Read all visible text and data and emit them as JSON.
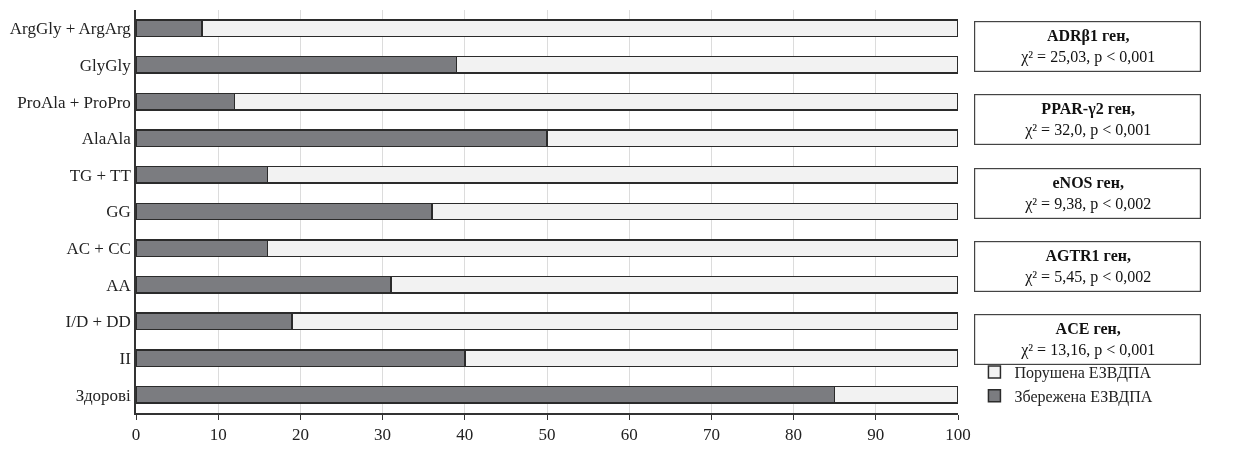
{
  "chart_data": {
    "type": "bar",
    "orientation": "horizontal",
    "stacked": true,
    "categories": [
      "ArgGly + ArgArg",
      "GlyGly",
      "ProAla + ProPro",
      "AlaAla",
      "TG + TT",
      "GG",
      "AC + CC",
      "AA",
      "I/D + DD",
      "II",
      "Здорові"
    ],
    "series": [
      {
        "name": "Збережена ЕЗВДПА",
        "color": "#7b7c80",
        "values": [
          8,
          39,
          12,
          50,
          16,
          36,
          16,
          31,
          19,
          40,
          85
        ]
      },
      {
        "name": "Порушена ЕЗВДПА",
        "color": "#f2f2f2",
        "values": [
          92,
          61,
          88,
          50,
          84,
          64,
          84,
          69,
          81,
          60,
          15
        ]
      }
    ],
    "xlim": [
      0,
      100
    ],
    "xticks": [
      0,
      10,
      20,
      30,
      40,
      50,
      60,
      70,
      80,
      90,
      100
    ],
    "grid": "x",
    "legend": "bottom right",
    "annotations": [
      "ADRβ1 ген,\nχ² = 25,03, p < 0,001",
      "PPAR-γ2 ген,\nχ² = 32,0, p < 0,001",
      "eNOS ген,\nχ² = 9,38, p < 0,002",
      "AGTR1 ген,\nχ² = 5,45, p < 0,002",
      "ACE ген,\nχ² = 13,16, p < 0,001"
    ]
  }
}
